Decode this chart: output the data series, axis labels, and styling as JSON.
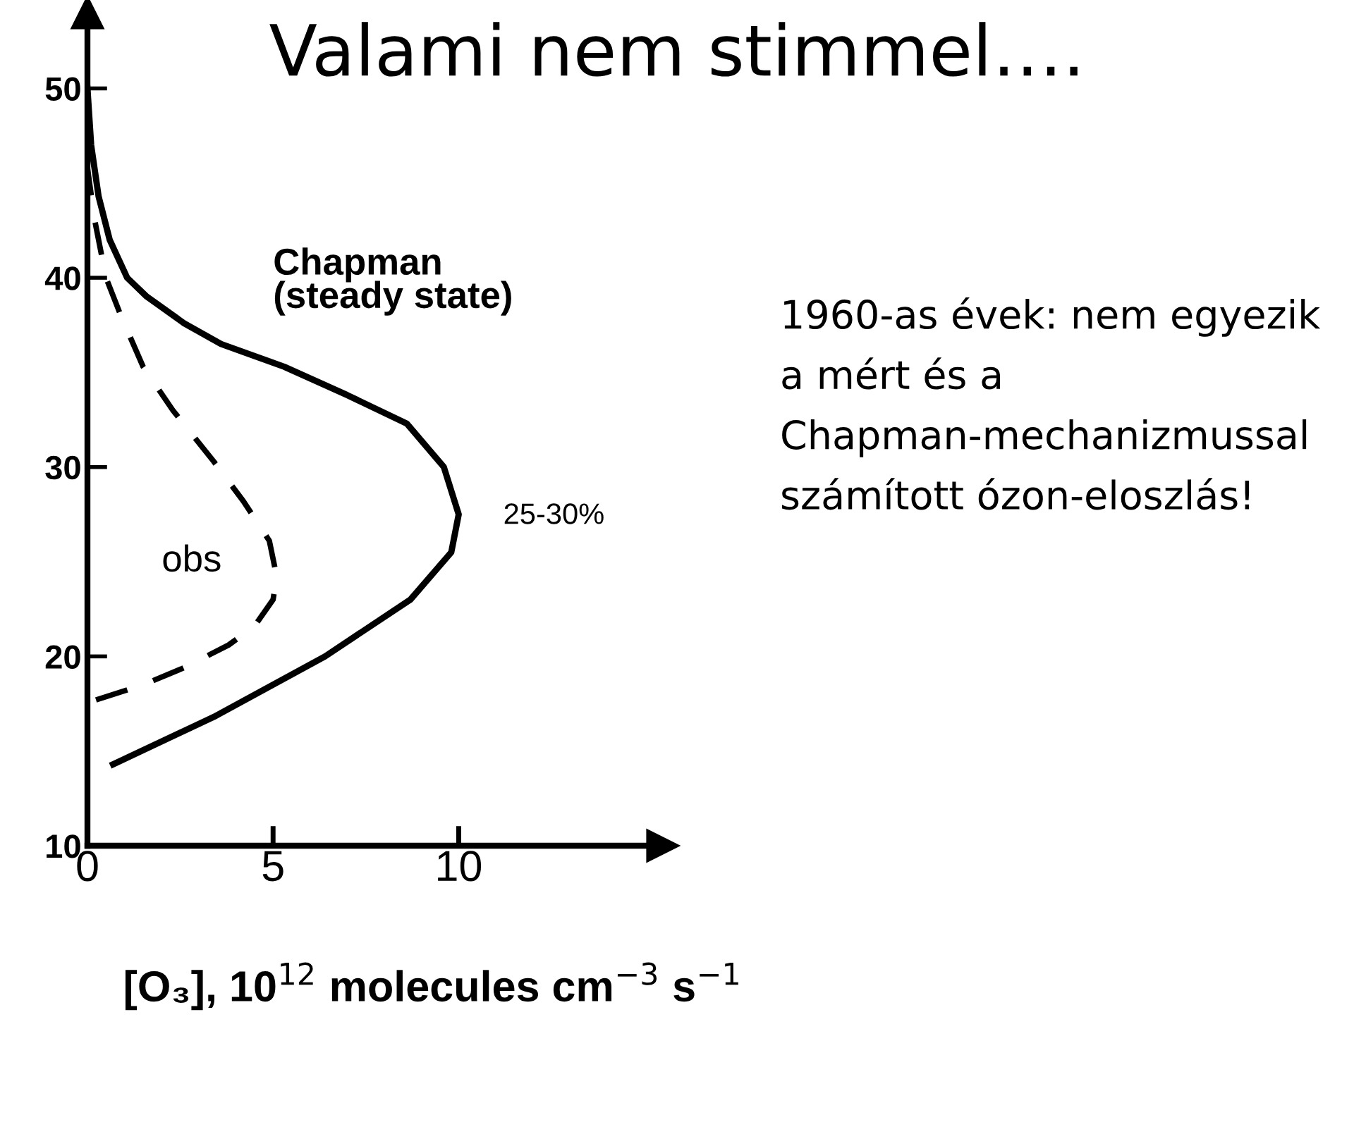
{
  "chart_data": {
    "type": "line",
    "title": "Valami nem stimmel….",
    "xlabel": "[O₃], 10$^{12}$ molecules cm$^{−3}$ s$^{−1}$",
    "xlim": [
      0,
      15.5
    ],
    "ylim": [
      10,
      54
    ],
    "xticks": [
      0,
      5,
      10
    ],
    "yticks": [
      10,
      20,
      30,
      40,
      50
    ],
    "grid": false,
    "legend": false,
    "marker": "none",
    "series": [
      {
        "name": "Chapman (steady state)",
        "color": "#000000",
        "line_style": "solid",
        "x": [
          0.69,
          3.4,
          6.4,
          8.7,
          9.8,
          10,
          9.6,
          8.6,
          7,
          5.3,
          3.6,
          2.6,
          1.6,
          1.07,
          0.6,
          0.3,
          0.1,
          0
        ],
        "values": [
          14.3,
          16.8,
          20,
          23,
          25.5,
          27.5,
          30,
          32.3,
          33.8,
          35.3,
          36.5,
          37.6,
          39,
          40,
          42,
          44.3,
          47,
          50
        ]
      },
      {
        "name": "obs",
        "color": "#000000",
        "line_style": "dashed",
        "x": [
          0.23,
          1.5,
          2.6,
          3.8,
          4.5,
          5,
          5.1,
          4.9,
          4.2,
          3.4,
          2.3,
          1.5,
          0.9,
          0.5,
          0.2,
          0
        ],
        "values": [
          17.7,
          18.5,
          19.4,
          20.6,
          21.6,
          23,
          24.2,
          26.1,
          28.2,
          30.3,
          33,
          35.3,
          38,
          40,
          43,
          45.8
        ]
      }
    ],
    "annotations": [
      "25-30%",
      "1960-as évek: nem egyezik a mért és a Chapman-mechanizmussal számított ózon-eloszlás!"
    ]
  }
}
